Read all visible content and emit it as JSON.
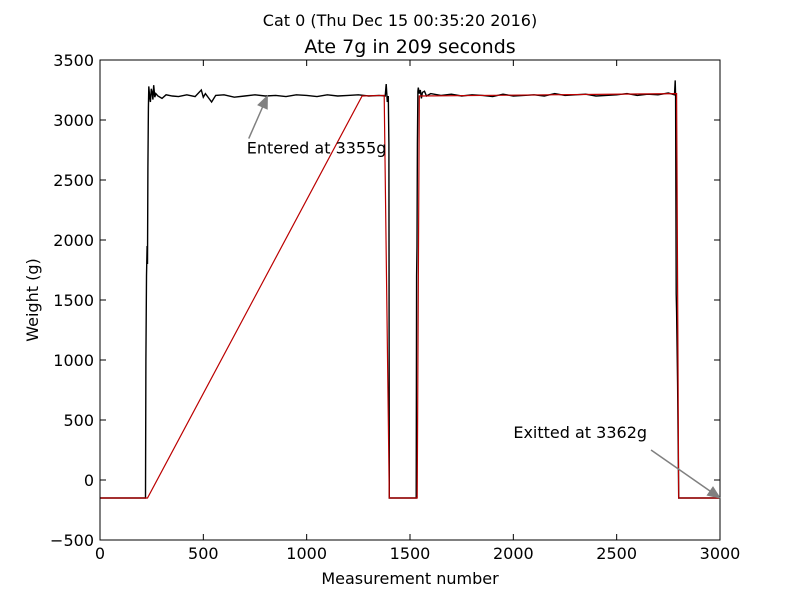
{
  "chart_data": {
    "type": "line",
    "suptitle": "Cat 0 (Thu Dec 15 00:35:20 2016)",
    "title": "Ate 7g in 209 seconds",
    "xlabel": "Measurement number",
    "ylabel": "Weight (g)",
    "xlim": [
      0,
      3000
    ],
    "ylim": [
      -500,
      3500
    ],
    "xticks": [
      0,
      500,
      1000,
      1500,
      2000,
      2500,
      3000
    ],
    "yticks": [
      -500,
      0,
      500,
      1000,
      1500,
      2000,
      2500,
      3000,
      3500
    ],
    "grid": false,
    "colors": {
      "raw": "#000000",
      "fit": "#bb0000",
      "arrow": "#808080"
    },
    "series": [
      {
        "x": [
          0,
          220,
          222,
          225,
          228,
          230,
          232,
          234,
          236,
          240,
          244,
          248,
          252,
          256,
          260,
          265,
          270,
          280,
          300,
          320,
          350,
          380,
          420,
          460,
          490,
          500,
          510,
          540,
          560,
          600,
          650,
          700,
          750,
          800,
          850,
          900,
          950,
          1000,
          1050,
          1100,
          1150,
          1200,
          1250,
          1300,
          1350,
          1380,
          1385,
          1390,
          1395,
          1398,
          1400,
          1405,
          1450,
          1500,
          1530,
          1532,
          1534,
          1536,
          1538,
          1540,
          1545,
          1550,
          1555,
          1560,
          1570,
          1580,
          1600,
          1650,
          1700,
          1750,
          1800,
          1850,
          1900,
          1950,
          2000,
          2050,
          2100,
          2150,
          2200,
          2250,
          2300,
          2350,
          2400,
          2450,
          2500,
          2550,
          2600,
          2650,
          2700,
          2750,
          2780,
          2783,
          2785,
          2788,
          2790,
          2795,
          2800,
          2805,
          2810,
          2900,
          3000
        ],
        "y": [
          -150,
          -150,
          1000,
          1700,
          1950,
          1800,
          2600,
          3100,
          3280,
          3200,
          3150,
          3260,
          3230,
          3170,
          3290,
          3190,
          3220,
          3200,
          3180,
          3210,
          3200,
          3195,
          3210,
          3195,
          3250,
          3190,
          3220,
          3150,
          3205,
          3210,
          3190,
          3200,
          3210,
          3200,
          3205,
          3195,
          3210,
          3205,
          3195,
          3210,
          3200,
          3205,
          3210,
          3200,
          3205,
          3200,
          3300,
          3150,
          3200,
          2800,
          -150,
          -150,
          -150,
          -150,
          -150,
          1700,
          1950,
          2800,
          3240,
          3270,
          3220,
          3250,
          3180,
          3230,
          3240,
          3200,
          3220,
          3205,
          3215,
          3200,
          3210,
          3205,
          3195,
          3215,
          3200,
          3205,
          3210,
          3200,
          3220,
          3205,
          3210,
          3215,
          3200,
          3205,
          3210,
          3220,
          3205,
          3215,
          3210,
          3225,
          3210,
          3330,
          3200,
          1550,
          1400,
          800,
          -150,
          -150,
          -150,
          -150,
          -150
        ]
      },
      {
        "x": [
          0,
          230,
          1268,
          1375,
          1400,
          1535,
          1545,
          2790,
          2800,
          3000
        ],
        "y": [
          -150,
          -150,
          3200,
          3205,
          -150,
          -150,
          3200,
          3220,
          -150,
          -150
        ]
      }
    ],
    "annotations": [
      {
        "text": "Entered at 3355g",
        "xy": [
          810,
          3200
        ],
        "xytext": [
          710,
          2720
        ]
      },
      {
        "text": "Exitted at 3362g",
        "xy": [
          3000,
          -150
        ],
        "xytext": [
          2000,
          350
        ]
      }
    ]
  }
}
